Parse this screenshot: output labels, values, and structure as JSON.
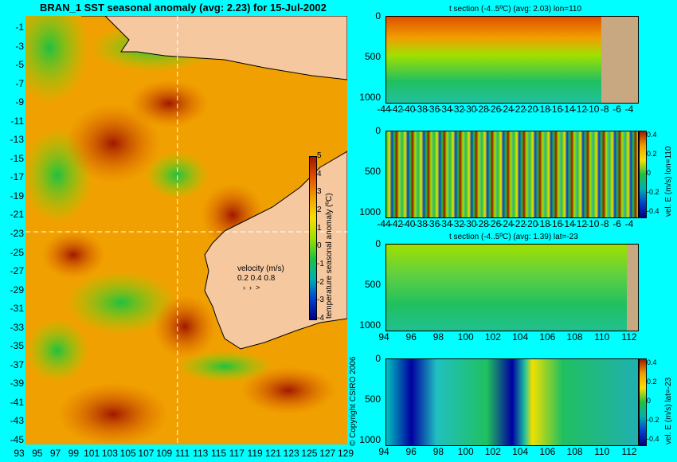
{
  "map": {
    "title": "BRAN_1  SST seasonal anomaly  (avg: 2.23)  for 15-Jul-2002",
    "lat_labels": [
      "-1",
      "-3",
      "-5",
      "-7",
      "-9",
      "-11",
      "-13",
      "-15",
      "-17",
      "-19",
      "-21",
      "-23",
      "-25",
      "-27",
      "-29",
      "-31",
      "-33",
      "-35",
      "-37",
      "-39",
      "-41",
      "-43",
      "-45"
    ],
    "lon_labels": [
      "93",
      "95",
      "97",
      "99",
      "101",
      "103",
      "105",
      "107",
      "109",
      "111",
      "113",
      "115",
      "117",
      "119",
      "121",
      "123",
      "125",
      "127",
      "129"
    ],
    "colorbar_label": "temperature seasonal anomaly (ºC)",
    "colorbar_ticks": [
      "5",
      "4",
      "3",
      "2",
      "1",
      "0",
      "-1",
      "-2",
      "-3",
      "-4"
    ],
    "velocity_title": "velocity (m/s)",
    "velocity_scale": "0.2 0.4 0.8",
    "copyright": "© Copyright CSIRO 2006",
    "crosshair": {
      "lon": 110,
      "lat": -23
    },
    "colors": {
      "land": "#f5c8a0",
      "ocean_warm": "#f5a000",
      "anomaly_hot": "#a02000",
      "anomaly_cool": "#20b040"
    }
  },
  "panels": [
    {
      "title": "t section (-4..5ºC) (avg: 2.03) lon=110",
      "y_ticks": [
        "0",
        "500",
        "1000"
      ],
      "x_ticks": [
        "-44",
        "-42",
        "-40",
        "-38",
        "-36",
        "-34",
        "-32",
        "-30",
        "-28",
        "-26",
        "-24",
        "-22",
        "-20",
        "-18",
        "-16",
        "-14",
        "-12",
        "-10",
        "-8",
        "-6",
        "-4"
      ],
      "colorbar": false
    },
    {
      "title": "",
      "y_ticks": [
        "0",
        "500",
        "1000"
      ],
      "x_ticks": [
        "-44",
        "-42",
        "-40",
        "-38",
        "-36",
        "-34",
        "-32",
        "-30",
        "-28",
        "-26",
        "-24",
        "-22",
        "-20",
        "-18",
        "-16",
        "-14",
        "-12",
        "-10",
        "-8",
        "-6",
        "-4"
      ],
      "colorbar": true,
      "colorbar_label": "vel. E (m/s) lon=110",
      "colorbar_ticks": [
        "0.4",
        "0.2",
        "0",
        "-0.2",
        "-0.4"
      ]
    },
    {
      "title": "t section (-4..5ºC) (avg: 1.39) lat=-23",
      "y_ticks": [
        "0",
        "500",
        "1000"
      ],
      "x_ticks": [
        "94",
        "96",
        "98",
        "100",
        "102",
        "104",
        "106",
        "108",
        "110",
        "112"
      ],
      "colorbar": false
    },
    {
      "title": "",
      "y_ticks": [
        "0",
        "500",
        "1000"
      ],
      "x_ticks": [
        "94",
        "96",
        "98",
        "100",
        "102",
        "104",
        "106",
        "108",
        "110",
        "112"
      ],
      "colorbar": true,
      "colorbar_label": "vel. E (m/s) lat=-23",
      "colorbar_ticks": [
        "0.4",
        "0.2",
        "0",
        "-0.2",
        "-0.4"
      ]
    }
  ]
}
